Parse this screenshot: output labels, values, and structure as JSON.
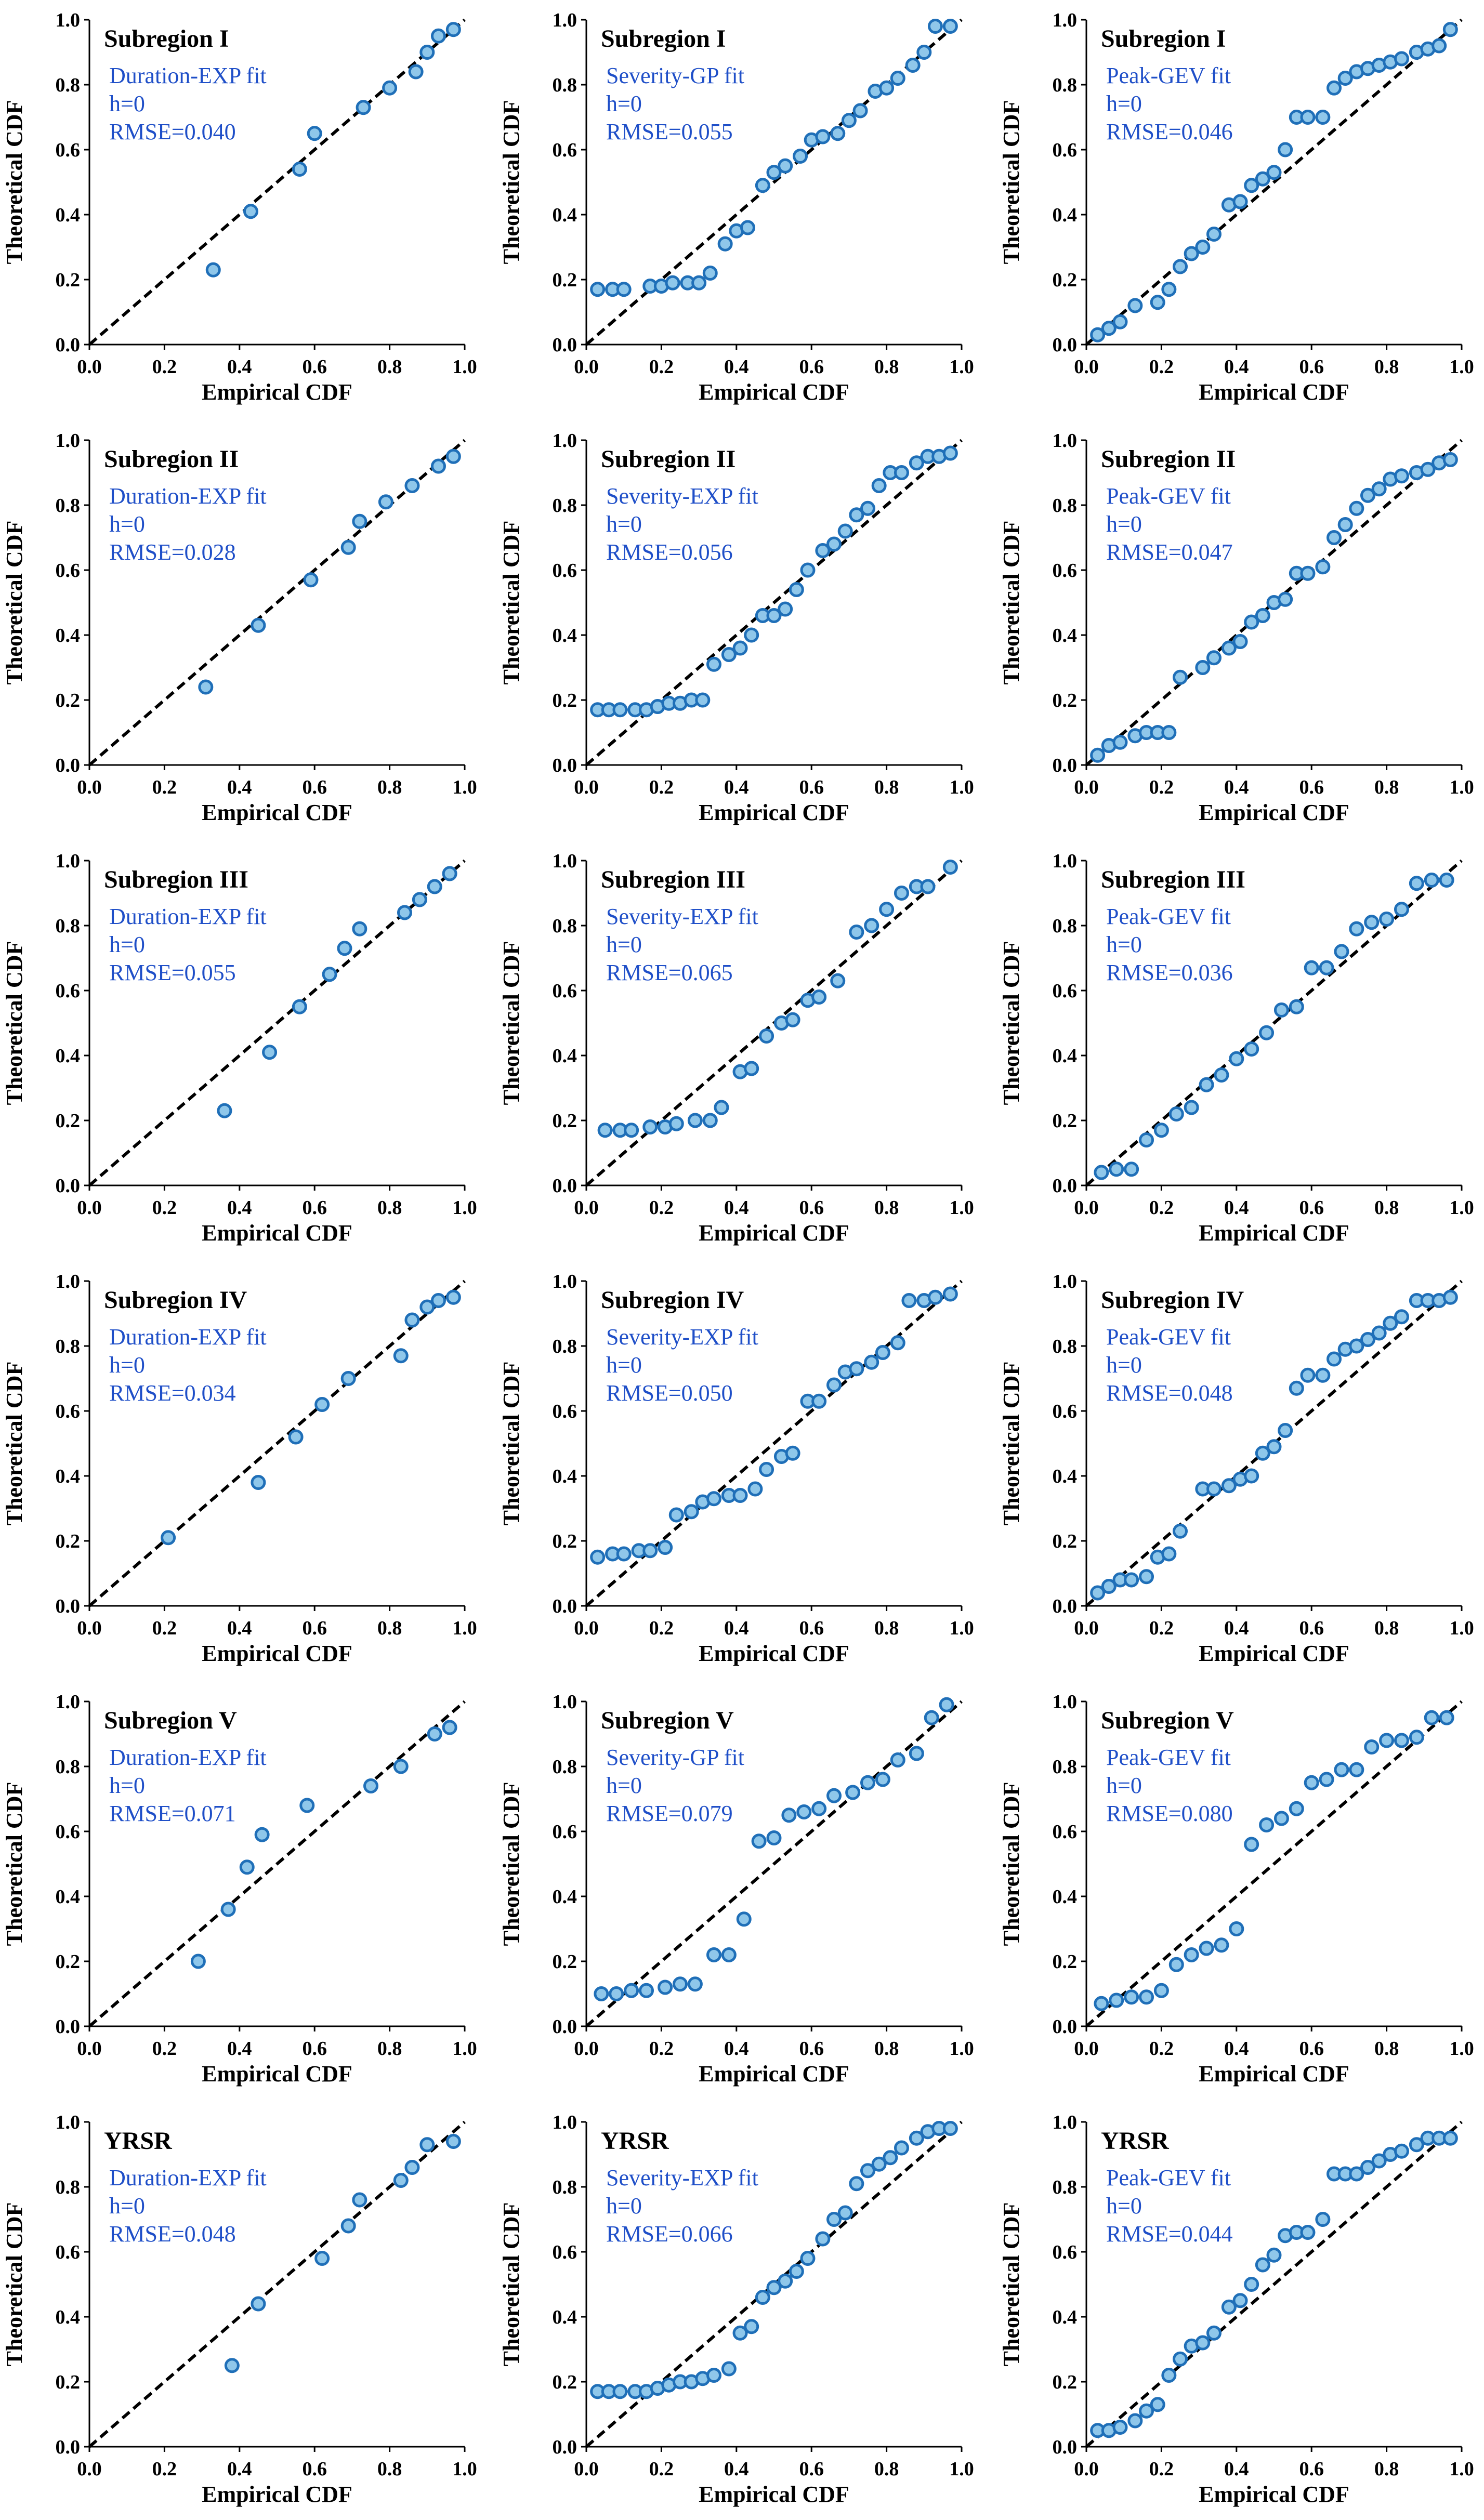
{
  "figure": {
    "description_free": true,
    "colors": {
      "marker_fill": "#8fc7ea",
      "marker_edge": "#1f6fb8",
      "annotation": "#1f4fc8",
      "reference_line": "#000000"
    }
  },
  "chart_data": [
    {
      "type": "scatter",
      "title": "Subregion I",
      "fit": "Duration-EXP fit",
      "h": "h=0",
      "rmse": "RMSE=0.040",
      "xlabel": "Empirical CDF",
      "ylabel": "Theoretical CDF",
      "xlim": [
        0,
        1
      ],
      "ylim": [
        0,
        1
      ],
      "ticks": [
        "0.0",
        "0.2",
        "0.4",
        "0.6",
        "0.8",
        "1.0"
      ],
      "x": [
        0.33,
        0.43,
        0.56,
        0.6,
        0.73,
        0.8,
        0.87,
        0.9,
        0.93,
        0.97
      ],
      "y": [
        0.23,
        0.41,
        0.54,
        0.65,
        0.73,
        0.79,
        0.84,
        0.9,
        0.95,
        0.97
      ]
    },
    {
      "type": "scatter",
      "title": "Subregion I",
      "fit": "Severity-GP fit",
      "h": "h=0",
      "rmse": "RMSE=0.055",
      "xlabel": "Empirical CDF",
      "ylabel": "Theoretical CDF",
      "xlim": [
        0,
        1
      ],
      "ylim": [
        0,
        1
      ],
      "ticks": [
        "0.0",
        "0.2",
        "0.4",
        "0.6",
        "0.8",
        "1.0"
      ],
      "x": [
        0.03,
        0.07,
        0.1,
        0.17,
        0.2,
        0.23,
        0.27,
        0.3,
        0.33,
        0.37,
        0.4,
        0.43,
        0.47,
        0.5,
        0.53,
        0.57,
        0.6,
        0.63,
        0.67,
        0.7,
        0.73,
        0.77,
        0.8,
        0.83,
        0.87,
        0.9,
        0.93,
        0.97
      ],
      "y": [
        0.17,
        0.17,
        0.17,
        0.18,
        0.18,
        0.19,
        0.19,
        0.19,
        0.22,
        0.31,
        0.35,
        0.36,
        0.49,
        0.53,
        0.55,
        0.58,
        0.63,
        0.64,
        0.65,
        0.69,
        0.72,
        0.78,
        0.79,
        0.82,
        0.86,
        0.9,
        0.98,
        0.98
      ]
    },
    {
      "type": "scatter",
      "title": "Subregion I",
      "fit": "Peak-GEV fit",
      "h": "h=0",
      "rmse": "RMSE=0.046",
      "xlabel": "Empirical CDF",
      "ylabel": "Theoretical CDF",
      "xlim": [
        0,
        1
      ],
      "ylim": [
        0,
        1
      ],
      "ticks": [
        "0.0",
        "0.2",
        "0.4",
        "0.6",
        "0.8",
        "1.0"
      ],
      "x": [
        0.03,
        0.06,
        0.09,
        0.13,
        0.19,
        0.22,
        0.25,
        0.28,
        0.31,
        0.34,
        0.38,
        0.41,
        0.44,
        0.47,
        0.5,
        0.53,
        0.56,
        0.59,
        0.63,
        0.66,
        0.69,
        0.72,
        0.75,
        0.78,
        0.81,
        0.84,
        0.88,
        0.91,
        0.94,
        0.97
      ],
      "y": [
        0.03,
        0.05,
        0.07,
        0.12,
        0.13,
        0.17,
        0.24,
        0.28,
        0.3,
        0.34,
        0.43,
        0.44,
        0.49,
        0.51,
        0.53,
        0.6,
        0.7,
        0.7,
        0.7,
        0.79,
        0.82,
        0.84,
        0.85,
        0.86,
        0.87,
        0.88,
        0.9,
        0.91,
        0.92,
        0.97
      ]
    },
    {
      "type": "scatter",
      "title": "Subregion II",
      "fit": "Duration-EXP fit",
      "h": "h=0",
      "rmse": "RMSE=0.028",
      "xlabel": "Empirical CDF",
      "ylabel": "Theoretical CDF",
      "xlim": [
        0,
        1
      ],
      "ylim": [
        0,
        1
      ],
      "ticks": [
        "0.0",
        "0.2",
        "0.4",
        "0.6",
        "0.8",
        "1.0"
      ],
      "x": [
        0.31,
        0.45,
        0.59,
        0.69,
        0.72,
        0.79,
        0.86,
        0.93,
        0.97
      ],
      "y": [
        0.24,
        0.43,
        0.57,
        0.67,
        0.75,
        0.81,
        0.86,
        0.92,
        0.95
      ]
    },
    {
      "type": "scatter",
      "title": "Subregion II",
      "fit": "Severity-EXP fit",
      "h": "h=0",
      "rmse": "RMSE=0.056",
      "xlabel": "Empirical CDF",
      "ylabel": "Theoretical CDF",
      "xlim": [
        0,
        1
      ],
      "ylim": [
        0,
        1
      ],
      "ticks": [
        "0.0",
        "0.2",
        "0.4",
        "0.6",
        "0.8",
        "1.0"
      ],
      "x": [
        0.03,
        0.06,
        0.09,
        0.13,
        0.16,
        0.19,
        0.22,
        0.25,
        0.28,
        0.31,
        0.34,
        0.38,
        0.41,
        0.44,
        0.47,
        0.5,
        0.53,
        0.56,
        0.59,
        0.63,
        0.66,
        0.69,
        0.72,
        0.75,
        0.78,
        0.81,
        0.84,
        0.88,
        0.91,
        0.94,
        0.97
      ],
      "y": [
        0.17,
        0.17,
        0.17,
        0.17,
        0.17,
        0.18,
        0.19,
        0.19,
        0.2,
        0.2,
        0.31,
        0.34,
        0.36,
        0.4,
        0.46,
        0.46,
        0.48,
        0.54,
        0.6,
        0.66,
        0.68,
        0.72,
        0.77,
        0.79,
        0.86,
        0.9,
        0.9,
        0.93,
        0.95,
        0.95,
        0.96
      ]
    },
    {
      "type": "scatter",
      "title": "Subregion II",
      "fit": "Peak-GEV fit",
      "h": "h=0",
      "rmse": "RMSE=0.047",
      "xlabel": "Empirical CDF",
      "ylabel": "Theoretical CDF",
      "xlim": [
        0,
        1
      ],
      "ylim": [
        0,
        1
      ],
      "ticks": [
        "0.0",
        "0.2",
        "0.4",
        "0.6",
        "0.8",
        "1.0"
      ],
      "x": [
        0.03,
        0.06,
        0.09,
        0.13,
        0.16,
        0.19,
        0.22,
        0.25,
        0.31,
        0.34,
        0.38,
        0.41,
        0.44,
        0.47,
        0.5,
        0.53,
        0.56,
        0.59,
        0.63,
        0.66,
        0.69,
        0.72,
        0.75,
        0.78,
        0.81,
        0.84,
        0.88,
        0.91,
        0.94,
        0.97
      ],
      "y": [
        0.03,
        0.06,
        0.07,
        0.09,
        0.1,
        0.1,
        0.1,
        0.27,
        0.3,
        0.33,
        0.36,
        0.38,
        0.44,
        0.46,
        0.5,
        0.51,
        0.59,
        0.59,
        0.61,
        0.7,
        0.74,
        0.79,
        0.83,
        0.85,
        0.88,
        0.89,
        0.9,
        0.91,
        0.93,
        0.94
      ]
    },
    {
      "type": "scatter",
      "title": "Subregion III",
      "fit": "Duration-EXP fit",
      "h": "h=0",
      "rmse": "RMSE=0.055",
      "xlabel": "Empirical CDF",
      "ylabel": "Theoretical CDF",
      "xlim": [
        0,
        1
      ],
      "ylim": [
        0,
        1
      ],
      "ticks": [
        "0.0",
        "0.2",
        "0.4",
        "0.6",
        "0.8",
        "1.0"
      ],
      "x": [
        0.36,
        0.48,
        0.56,
        0.64,
        0.68,
        0.72,
        0.84,
        0.88,
        0.92,
        0.96
      ],
      "y": [
        0.23,
        0.41,
        0.55,
        0.65,
        0.73,
        0.79,
        0.84,
        0.88,
        0.92,
        0.96
      ]
    },
    {
      "type": "scatter",
      "title": "Subregion III",
      "fit": "Severity-EXP fit",
      "h": "h=0",
      "rmse": "RMSE=0.065",
      "xlabel": "Empirical CDF",
      "ylabel": "Theoretical CDF",
      "xlim": [
        0,
        1
      ],
      "ylim": [
        0,
        1
      ],
      "ticks": [
        "0.0",
        "0.2",
        "0.4",
        "0.6",
        "0.8",
        "1.0"
      ],
      "x": [
        0.05,
        0.09,
        0.12,
        0.17,
        0.21,
        0.24,
        0.29,
        0.33,
        0.36,
        0.41,
        0.44,
        0.48,
        0.52,
        0.55,
        0.59,
        0.62,
        0.67,
        0.72,
        0.76,
        0.8,
        0.84,
        0.88,
        0.91,
        0.97
      ],
      "y": [
        0.17,
        0.17,
        0.17,
        0.18,
        0.18,
        0.19,
        0.2,
        0.2,
        0.24,
        0.35,
        0.36,
        0.46,
        0.5,
        0.51,
        0.57,
        0.58,
        0.63,
        0.78,
        0.8,
        0.85,
        0.9,
        0.92,
        0.92,
        0.98
      ]
    },
    {
      "type": "scatter",
      "title": "Subregion III",
      "fit": "Peak-GEV fit",
      "h": "h=0",
      "rmse": "RMSE=0.036",
      "xlabel": "Empirical CDF",
      "ylabel": "Theoretical CDF",
      "xlim": [
        0,
        1
      ],
      "ylim": [
        0,
        1
      ],
      "ticks": [
        "0.0",
        "0.2",
        "0.4",
        "0.6",
        "0.8",
        "1.0"
      ],
      "x": [
        0.04,
        0.08,
        0.12,
        0.16,
        0.2,
        0.24,
        0.28,
        0.32,
        0.36,
        0.4,
        0.44,
        0.48,
        0.52,
        0.56,
        0.6,
        0.64,
        0.68,
        0.72,
        0.76,
        0.8,
        0.84,
        0.88,
        0.92,
        0.96
      ],
      "y": [
        0.04,
        0.05,
        0.05,
        0.14,
        0.17,
        0.22,
        0.24,
        0.31,
        0.34,
        0.39,
        0.42,
        0.47,
        0.54,
        0.55,
        0.67,
        0.67,
        0.72,
        0.79,
        0.81,
        0.82,
        0.85,
        0.93,
        0.94,
        0.94
      ]
    },
    {
      "type": "scatter",
      "title": "Subregion IV",
      "fit": "Duration-EXP fit",
      "h": "h=0",
      "rmse": "RMSE=0.034",
      "xlabel": "Empirical CDF",
      "ylabel": "Theoretical CDF",
      "xlim": [
        0,
        1
      ],
      "ylim": [
        0,
        1
      ],
      "ticks": [
        "0.0",
        "0.2",
        "0.4",
        "0.6",
        "0.8",
        "1.0"
      ],
      "x": [
        0.21,
        0.45,
        0.55,
        0.62,
        0.69,
        0.83,
        0.86,
        0.9,
        0.93,
        0.97
      ],
      "y": [
        0.21,
        0.38,
        0.52,
        0.62,
        0.7,
        0.77,
        0.88,
        0.92,
        0.94,
        0.95
      ]
    },
    {
      "type": "scatter",
      "title": "Subregion IV",
      "fit": "Severity-EXP fit",
      "h": "h=0",
      "rmse": "RMSE=0.050",
      "xlabel": "Empirical CDF",
      "ylabel": "Theoretical CDF",
      "xlim": [
        0,
        1
      ],
      "ylim": [
        0,
        1
      ],
      "ticks": [
        "0.0",
        "0.2",
        "0.4",
        "0.6",
        "0.8",
        "1.0"
      ],
      "x": [
        0.03,
        0.07,
        0.1,
        0.14,
        0.17,
        0.21,
        0.24,
        0.28,
        0.31,
        0.34,
        0.38,
        0.41,
        0.45,
        0.48,
        0.52,
        0.55,
        0.59,
        0.62,
        0.66,
        0.69,
        0.72,
        0.76,
        0.79,
        0.83,
        0.86,
        0.9,
        0.93,
        0.97
      ],
      "y": [
        0.15,
        0.16,
        0.16,
        0.17,
        0.17,
        0.18,
        0.28,
        0.29,
        0.32,
        0.33,
        0.34,
        0.34,
        0.36,
        0.42,
        0.46,
        0.47,
        0.63,
        0.63,
        0.68,
        0.72,
        0.73,
        0.75,
        0.78,
        0.81,
        0.94,
        0.94,
        0.95,
        0.96
      ]
    },
    {
      "type": "scatter",
      "title": "Subregion IV",
      "fit": "Peak-GEV fit",
      "h": "h=0",
      "rmse": "RMSE=0.048",
      "xlabel": "Empirical CDF",
      "ylabel": "Theoretical CDF",
      "xlim": [
        0,
        1
      ],
      "ylim": [
        0,
        1
      ],
      "ticks": [
        "0.0",
        "0.2",
        "0.4",
        "0.6",
        "0.8",
        "1.0"
      ],
      "x": [
        0.03,
        0.06,
        0.09,
        0.12,
        0.16,
        0.19,
        0.22,
        0.25,
        0.31,
        0.34,
        0.38,
        0.41,
        0.44,
        0.47,
        0.5,
        0.53,
        0.56,
        0.59,
        0.63,
        0.66,
        0.69,
        0.72,
        0.75,
        0.78,
        0.81,
        0.84,
        0.88,
        0.91,
        0.94,
        0.97
      ],
      "y": [
        0.04,
        0.06,
        0.08,
        0.08,
        0.09,
        0.15,
        0.16,
        0.23,
        0.36,
        0.36,
        0.37,
        0.39,
        0.4,
        0.47,
        0.49,
        0.54,
        0.67,
        0.71,
        0.71,
        0.76,
        0.79,
        0.8,
        0.82,
        0.84,
        0.87,
        0.89,
        0.94,
        0.94,
        0.94,
        0.95
      ]
    },
    {
      "type": "scatter",
      "title": "Subregion V",
      "fit": "Duration-EXP fit",
      "h": "h=0",
      "rmse": "RMSE=0.071",
      "xlabel": "Empirical CDF",
      "ylabel": "Theoretical CDF",
      "xlim": [
        0,
        1
      ],
      "ylim": [
        0,
        1
      ],
      "ticks": [
        "0.0",
        "0.2",
        "0.4",
        "0.6",
        "0.8",
        "1.0"
      ],
      "x": [
        0.29,
        0.37,
        0.42,
        0.46,
        0.58,
        0.75,
        0.83,
        0.92,
        0.96
      ],
      "y": [
        0.2,
        0.36,
        0.49,
        0.59,
        0.68,
        0.74,
        0.8,
        0.9,
        0.92
      ]
    },
    {
      "type": "scatter",
      "title": "Subregion V",
      "fit": "Severity-GP fit",
      "h": "h=0",
      "rmse": "RMSE=0.079",
      "xlabel": "Empirical CDF",
      "ylabel": "Theoretical CDF",
      "xlim": [
        0,
        1
      ],
      "ylim": [
        0,
        1
      ],
      "ticks": [
        "0.0",
        "0.2",
        "0.4",
        "0.6",
        "0.8",
        "1.0"
      ],
      "x": [
        0.04,
        0.08,
        0.12,
        0.16,
        0.21,
        0.25,
        0.29,
        0.34,
        0.38,
        0.42,
        0.46,
        0.5,
        0.54,
        0.58,
        0.62,
        0.66,
        0.71,
        0.75,
        0.79,
        0.83,
        0.88,
        0.92,
        0.96
      ],
      "y": [
        0.1,
        0.1,
        0.11,
        0.11,
        0.12,
        0.13,
        0.13,
        0.22,
        0.22,
        0.33,
        0.57,
        0.58,
        0.65,
        0.66,
        0.67,
        0.71,
        0.72,
        0.75,
        0.76,
        0.82,
        0.84,
        0.95,
        0.99
      ]
    },
    {
      "type": "scatter",
      "title": "Subregion V",
      "fit": "Peak-GEV fit",
      "h": "h=0",
      "rmse": "RMSE=0.080",
      "xlabel": "Empirical CDF",
      "ylabel": "Theoretical CDF",
      "xlim": [
        0,
        1
      ],
      "ylim": [
        0,
        1
      ],
      "ticks": [
        "0.0",
        "0.2",
        "0.4",
        "0.6",
        "0.8",
        "1.0"
      ],
      "x": [
        0.04,
        0.08,
        0.12,
        0.16,
        0.2,
        0.24,
        0.28,
        0.32,
        0.36,
        0.4,
        0.44,
        0.48,
        0.52,
        0.56,
        0.6,
        0.64,
        0.68,
        0.72,
        0.76,
        0.8,
        0.84,
        0.88,
        0.92,
        0.96
      ],
      "y": [
        0.07,
        0.08,
        0.09,
        0.09,
        0.11,
        0.19,
        0.22,
        0.24,
        0.25,
        0.3,
        0.56,
        0.62,
        0.64,
        0.67,
        0.75,
        0.76,
        0.79,
        0.79,
        0.86,
        0.88,
        0.88,
        0.89,
        0.95,
        0.95
      ]
    },
    {
      "type": "scatter",
      "title": "YRSR",
      "fit": "Duration-EXP fit",
      "h": "h=0",
      "rmse": "RMSE=0.048",
      "xlabel": "Empirical CDF",
      "ylabel": "Theoretical CDF",
      "xlim": [
        0,
        1
      ],
      "ylim": [
        0,
        1
      ],
      "ticks": [
        "0.0",
        "0.2",
        "0.4",
        "0.6",
        "0.8",
        "1.0"
      ],
      "x": [
        0.38,
        0.45,
        0.62,
        0.69,
        0.72,
        0.83,
        0.86,
        0.9,
        0.97
      ],
      "y": [
        0.25,
        0.44,
        0.58,
        0.68,
        0.76,
        0.82,
        0.86,
        0.93,
        0.94
      ]
    },
    {
      "type": "scatter",
      "title": "YRSR",
      "fit": "Severity-EXP fit",
      "h": "h=0",
      "rmse": "RMSE=0.066",
      "xlabel": "Empirical CDF",
      "ylabel": "Theoretical CDF",
      "xlim": [
        0,
        1
      ],
      "ylim": [
        0,
        1
      ],
      "ticks": [
        "0.0",
        "0.2",
        "0.4",
        "0.6",
        "0.8",
        "1.0"
      ],
      "x": [
        0.03,
        0.06,
        0.09,
        0.13,
        0.16,
        0.19,
        0.22,
        0.25,
        0.28,
        0.31,
        0.34,
        0.38,
        0.41,
        0.44,
        0.47,
        0.5,
        0.53,
        0.56,
        0.59,
        0.63,
        0.66,
        0.69,
        0.72,
        0.75,
        0.78,
        0.81,
        0.84,
        0.88,
        0.91,
        0.94,
        0.97
      ],
      "y": [
        0.17,
        0.17,
        0.17,
        0.17,
        0.17,
        0.18,
        0.19,
        0.2,
        0.2,
        0.21,
        0.22,
        0.24,
        0.35,
        0.37,
        0.46,
        0.49,
        0.51,
        0.54,
        0.58,
        0.64,
        0.7,
        0.72,
        0.81,
        0.85,
        0.87,
        0.89,
        0.92,
        0.95,
        0.97,
        0.98,
        0.98
      ]
    },
    {
      "type": "scatter",
      "title": "YRSR",
      "fit": "Peak-GEV fit",
      "h": "h=0",
      "rmse": "RMSE=0.044",
      "xlabel": "Empirical CDF",
      "ylabel": "Theoretical CDF",
      "xlim": [
        0,
        1
      ],
      "ylim": [
        0,
        1
      ],
      "ticks": [
        "0.0",
        "0.2",
        "0.4",
        "0.6",
        "0.8",
        "1.0"
      ],
      "x": [
        0.03,
        0.06,
        0.09,
        0.13,
        0.16,
        0.19,
        0.22,
        0.25,
        0.28,
        0.31,
        0.34,
        0.38,
        0.41,
        0.44,
        0.47,
        0.5,
        0.53,
        0.56,
        0.59,
        0.63,
        0.66,
        0.69,
        0.72,
        0.75,
        0.78,
        0.81,
        0.84,
        0.88,
        0.91,
        0.94,
        0.97
      ],
      "y": [
        0.05,
        0.05,
        0.06,
        0.08,
        0.11,
        0.13,
        0.22,
        0.27,
        0.31,
        0.32,
        0.35,
        0.43,
        0.45,
        0.5,
        0.56,
        0.59,
        0.65,
        0.66,
        0.66,
        0.7,
        0.84,
        0.84,
        0.84,
        0.86,
        0.88,
        0.9,
        0.91,
        0.93,
        0.95,
        0.95,
        0.95
      ]
    }
  ]
}
